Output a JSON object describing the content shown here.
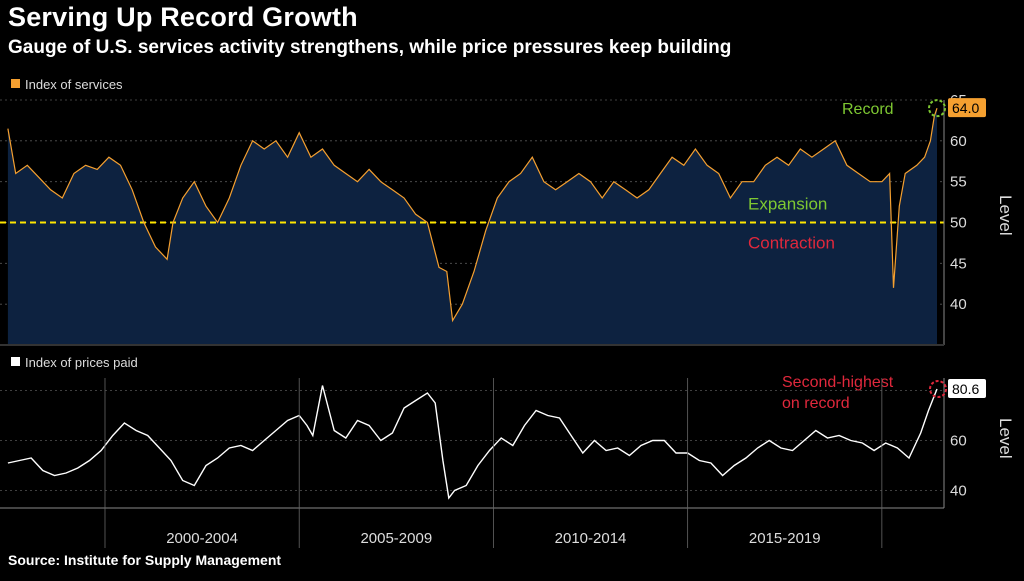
{
  "header": {
    "title": "Serving Up Record Growth",
    "subtitle": "Gauge of U.S. services activity strengthens, while price pressures keep building"
  },
  "footer": {
    "source": "Source: Institute for Supply Management"
  },
  "colors": {
    "services_line": "#f5a030",
    "services_fill": "#0d2240",
    "prices_line": "#ffffff",
    "threshold": "#ffe600",
    "expansion_text": "#7ec832",
    "contraction_text": "#e0283c",
    "record_label": "#f5a030",
    "grid": "#555555"
  },
  "chart_data": [
    {
      "type": "area",
      "legend": "Index of services",
      "ylabel": "Level",
      "ylim": [
        35,
        65
      ],
      "yticks": [
        40,
        45,
        50,
        55,
        60,
        65
      ],
      "xlim": [
        1997.4,
        2021.6
      ],
      "threshold": 50,
      "threshold_labels": {
        "above": "Expansion",
        "below": "Contraction"
      },
      "annotation": {
        "text": "Record",
        "x": 2021.42,
        "y": 64.0
      },
      "last_value_label": "64.0",
      "x": [
        1997.5,
        1997.7,
        1998.0,
        1998.3,
        1998.6,
        1998.9,
        1999.2,
        1999.5,
        1999.8,
        2000.1,
        2000.4,
        2000.7,
        2001.0,
        2001.3,
        2001.6,
        2001.75,
        2002.0,
        2002.3,
        2002.6,
        2002.9,
        2003.2,
        2003.5,
        2003.8,
        2004.1,
        2004.4,
        2004.7,
        2005.0,
        2005.3,
        2005.6,
        2005.9,
        2006.2,
        2006.5,
        2006.8,
        2007.1,
        2007.4,
        2007.7,
        2008.0,
        2008.3,
        2008.6,
        2008.8,
        2008.95,
        2009.2,
        2009.5,
        2009.8,
        2010.1,
        2010.4,
        2010.7,
        2011.0,
        2011.3,
        2011.6,
        2011.9,
        2012.2,
        2012.5,
        2012.8,
        2013.1,
        2013.4,
        2013.7,
        2014.0,
        2014.3,
        2014.6,
        2014.9,
        2015.2,
        2015.5,
        2015.8,
        2016.1,
        2016.4,
        2016.7,
        2017.0,
        2017.3,
        2017.6,
        2017.9,
        2018.2,
        2018.5,
        2018.8,
        2019.1,
        2019.4,
        2019.7,
        2020.0,
        2020.2,
        2020.3,
        2020.45,
        2020.6,
        2020.9,
        2021.1,
        2021.25,
        2021.35,
        2021.42
      ],
      "values": [
        61.5,
        56,
        57,
        55.5,
        54,
        53,
        56,
        57,
        56.5,
        58,
        57,
        54,
        50,
        47,
        45.5,
        50,
        53,
        55,
        52,
        50,
        53,
        57,
        60,
        59,
        60,
        58,
        61,
        58,
        59,
        57,
        56,
        55,
        56.5,
        55,
        54,
        53,
        51,
        50,
        44.5,
        44,
        38,
        40,
        44,
        49,
        53,
        55,
        56,
        58,
        55,
        54,
        55,
        56,
        55,
        53,
        55,
        54,
        53,
        54,
        56,
        58,
        57,
        59,
        57,
        56,
        53,
        55,
        55,
        57,
        58,
        57,
        59,
        58,
        59,
        60,
        57,
        56,
        55,
        55,
        56,
        42,
        52,
        56,
        57,
        58,
        60,
        63,
        64
      ]
    },
    {
      "type": "line",
      "legend": "Index of prices paid",
      "ylabel": "Level",
      "ylim": [
        33,
        85
      ],
      "yticks": [
        40,
        60,
        80
      ],
      "xlim": [
        1997.4,
        2021.6
      ],
      "annotation": {
        "text": [
          "Second-highest",
          "on record"
        ],
        "x": 2021.42,
        "y": 80.6
      },
      "last_value_label": "80.6",
      "x": [
        1997.5,
        1997.8,
        1998.1,
        1998.4,
        1998.7,
        1999.0,
        1999.3,
        1999.6,
        1999.9,
        2000.2,
        2000.5,
        2000.8,
        2001.1,
        2001.4,
        2001.7,
        2002.0,
        2002.3,
        2002.6,
        2002.9,
        2003.2,
        2003.5,
        2003.8,
        2004.1,
        2004.4,
        2004.7,
        2005.0,
        2005.2,
        2005.35,
        2005.6,
        2005.9,
        2006.2,
        2006.5,
        2006.8,
        2007.1,
        2007.4,
        2007.7,
        2008.0,
        2008.3,
        2008.5,
        2008.7,
        2008.85,
        2009.0,
        2009.3,
        2009.6,
        2009.9,
        2010.2,
        2010.5,
        2010.8,
        2011.1,
        2011.4,
        2011.7,
        2012.0,
        2012.3,
        2012.6,
        2012.9,
        2013.2,
        2013.5,
        2013.8,
        2014.1,
        2014.4,
        2014.7,
        2015.0,
        2015.3,
        2015.6,
        2015.9,
        2016.2,
        2016.5,
        2016.8,
        2017.1,
        2017.4,
        2017.7,
        2018.0,
        2018.3,
        2018.6,
        2018.9,
        2019.2,
        2019.5,
        2019.8,
        2020.1,
        2020.4,
        2020.7,
        2021.0,
        2021.2,
        2021.42
      ],
      "values": [
        51,
        52,
        53,
        48,
        46,
        47,
        49,
        52,
        56,
        62,
        67,
        64,
        62,
        57,
        52,
        44,
        42,
        50,
        53,
        57,
        58,
        56,
        60,
        64,
        68,
        70,
        66,
        62,
        82,
        64,
        61,
        68,
        66,
        60,
        63,
        73,
        76,
        79,
        75,
        52,
        37,
        40,
        42,
        50,
        56,
        61,
        58,
        66,
        72,
        70,
        69,
        62,
        55,
        60,
        56,
        57,
        54,
        58,
        60,
        60,
        55,
        55,
        52,
        51,
        46,
        50,
        53,
        57,
        60,
        57,
        56,
        60,
        64,
        61,
        62,
        60,
        59,
        56,
        59,
        57,
        53,
        63,
        72,
        80.6
      ]
    }
  ],
  "x_axis": {
    "period_labels": [
      {
        "label": "2000-2004",
        "center": 2002.5
      },
      {
        "label": "2005-2009",
        "center": 2007.5
      },
      {
        "label": "2010-2014",
        "center": 2012.5
      },
      {
        "label": "2015-2019",
        "center": 2017.5
      }
    ],
    "separators": [
      2000,
      2005,
      2010,
      2015,
      2020
    ]
  }
}
